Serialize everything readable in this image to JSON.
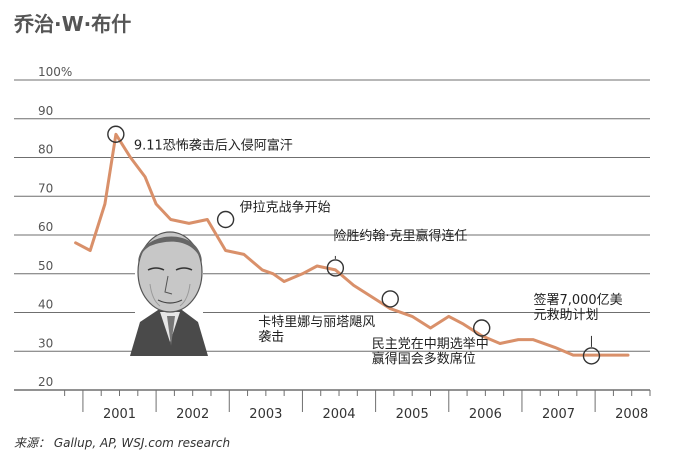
{
  "title": "乔治·W·布什",
  "source": "来源： Gallup, AP, WSJ.com research",
  "colors": {
    "line": "#d9906a",
    "grid": "#6f6f6f",
    "marker": "#333333",
    "text": "#555555"
  },
  "chart_data": {
    "type": "line",
    "title": "乔治·W·布什",
    "ylim": [
      20,
      100
    ],
    "yticks": [
      20,
      30,
      40,
      50,
      60,
      70,
      80,
      90,
      100
    ],
    "ytick_labels": [
      "20",
      "30",
      "40",
      "50",
      "60",
      "70",
      "80",
      "90",
      "100%"
    ],
    "xticks": [
      "2001",
      "2002",
      "2003",
      "2004",
      "2005",
      "2006",
      "2007",
      "2008"
    ],
    "xlim": [
      2000.55,
      2008.75
    ],
    "grid": true,
    "series": [
      {
        "x": [
          2000.9,
          2001.1,
          2001.3,
          2001.45,
          2001.65,
          2001.85,
          2002.0,
          2002.2,
          2002.45,
          2002.7,
          2002.95,
          2003.2,
          2003.45,
          2003.6,
          2003.75,
          2004.0,
          2004.2,
          2004.45,
          2004.7,
          2004.95,
          2005.2,
          2005.5,
          2005.75,
          2006.0,
          2006.2,
          2006.45,
          2006.7,
          2006.95,
          2007.15,
          2007.45,
          2007.7,
          2007.95,
          2008.2,
          2008.45
        ],
        "values": [
          58,
          56,
          68,
          86,
          80,
          75,
          68,
          64,
          63,
          64,
          56,
          55,
          51,
          50,
          48,
          50,
          52,
          51,
          47,
          44,
          41,
          39,
          36,
          39,
          37,
          34,
          32,
          33,
          33,
          31,
          29,
          29,
          29,
          29
        ]
      }
    ],
    "annotations": [
      {
        "label": "9.11恐怖袭击后入侵阿富汗",
        "x": 2001.45,
        "y": 86
      },
      {
        "label": "伊拉克战争开始",
        "x": 2002.95,
        "y": 64
      },
      {
        "label": "险胜约翰·克里赢得连任",
        "x": 2004.45,
        "y": 51.5
      },
      {
        "label": "卡特里娜与丽塔飓风\n袭击",
        "x": 2005.2,
        "y": 43.5
      },
      {
        "label": "民主党在中期选举中\n赢得国会多数席位",
        "x": 2006.45,
        "y": 36
      },
      {
        "label": "签署7,000亿美\n元救助计划",
        "x": 2007.95,
        "y": 28.8
      }
    ]
  }
}
